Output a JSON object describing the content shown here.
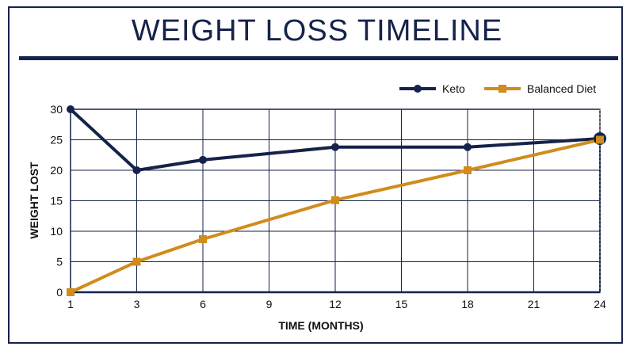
{
  "chart_data": {
    "type": "line",
    "title": "WEIGHT LOSS TIMELINE",
    "xlabel": "TIME (MONTHS)",
    "ylabel": "WEIGHT LOST",
    "x_ticks": [
      1,
      3,
      6,
      9,
      12,
      15,
      18,
      21,
      24
    ],
    "y_ticks": [
      0,
      5,
      10,
      15,
      20,
      25,
      30
    ],
    "ylim": [
      0,
      30
    ],
    "grid": true,
    "legend_position": "top-right",
    "series": [
      {
        "name": "Keto",
        "color": "#15224a",
        "marker": "circle",
        "x": [
          1,
          3,
          6,
          12,
          18,
          24
        ],
        "y": [
          30,
          20,
          21.7,
          23.8,
          23.8,
          25.2
        ]
      },
      {
        "name": "Balanced Diet",
        "color": "#d08c1c",
        "marker": "square",
        "x": [
          1,
          3,
          6,
          12,
          18,
          24
        ],
        "y": [
          0,
          5,
          8.7,
          15.1,
          20,
          25
        ]
      }
    ]
  }
}
